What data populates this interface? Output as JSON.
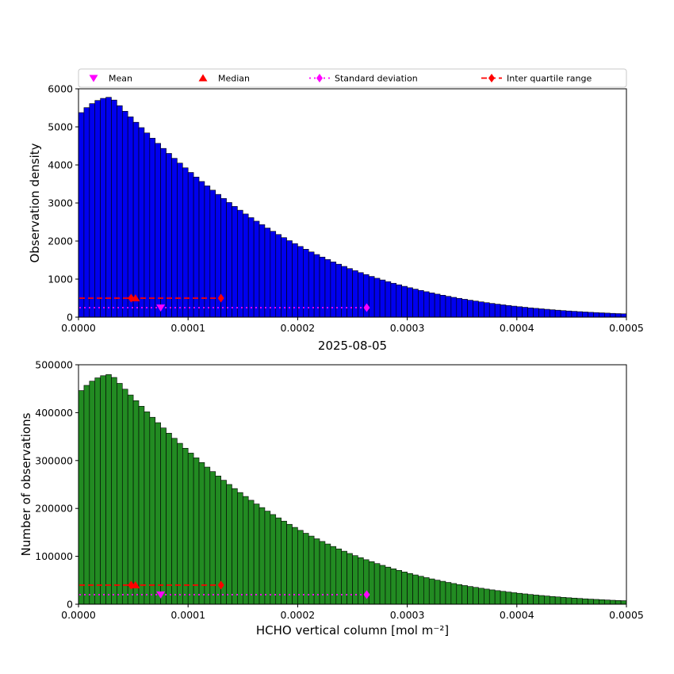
{
  "title": "2025-08-05",
  "xlabel": "HCHO vertical column [mol m⁻²]",
  "figure_background": "#ffffff",
  "marker_colors": {
    "mean": "#ff00ff",
    "median": "#ff0000",
    "std": "#ff00ff",
    "iqr": "#ff0000"
  },
  "legend": {
    "items": [
      {
        "label": "Mean",
        "marker": "triangle-down",
        "color": "#ff00ff",
        "line": null
      },
      {
        "label": "Median",
        "marker": "triangle-up",
        "color": "#ff0000",
        "line": null
      },
      {
        "label": "Standard deviation",
        "marker": "diamond",
        "color": "#ff00ff",
        "line": "dotted"
      },
      {
        "label": "Inter quartile range",
        "marker": "diamond",
        "color": "#ff0000",
        "line": "dashed"
      }
    ]
  },
  "chart_data": [
    {
      "type": "bar",
      "name": "observation-density-histogram",
      "ylabel": "Observation density",
      "bar_color": "#0000ee",
      "edge_color": "#000000",
      "bin_start": 0,
      "bin_width": 5e-06,
      "n_bins": 100,
      "xlim": [
        0,
        0.0005
      ],
      "ylim": [
        0,
        6000
      ],
      "xticks": [
        0,
        0.0001,
        0.0002,
        0.0003,
        0.0004,
        0.0005
      ],
      "xtick_labels": [
        "0.0000",
        "0.0001",
        "0.0002",
        "0.0003",
        "0.0004",
        "0.0005"
      ],
      "yticks": [
        0,
        1000,
        2000,
        3000,
        4000,
        5000,
        6000
      ],
      "ytick_labels": [
        "0",
        "1000",
        "2000",
        "3000",
        "4000",
        "5000",
        "6000"
      ],
      "values": [
        5375,
        5506,
        5612,
        5694,
        5749,
        5777,
        5705,
        5556,
        5410,
        5264,
        5121,
        4980,
        4840,
        4703,
        4567,
        4434,
        4303,
        4174,
        4048,
        3924,
        3802,
        3682,
        3565,
        3450,
        3337,
        3226,
        3119,
        3013,
        2910,
        2810,
        2711,
        2615,
        2522,
        2431,
        2342,
        2256,
        2172,
        2090,
        2010,
        1933,
        1858,
        1785,
        1714,
        1646,
        1579,
        1515,
        1453,
        1392,
        1334,
        1277,
        1223,
        1171,
        1120,
        1071,
        1023,
        978,
        934,
        891,
        851,
        811,
        774,
        737,
        703,
        669,
        637,
        606,
        577,
        548,
        521,
        495,
        470,
        446,
        424,
        402,
        381,
        361,
        342,
        324,
        307,
        290,
        275,
        260,
        245,
        232,
        219,
        207,
        195,
        184,
        173,
        163,
        154,
        145,
        136,
        128,
        121,
        114,
        107,
        100,
        94,
        89
      ],
      "markers": {
        "mean_x": 7.5e-05,
        "median_x": 5.2e-05,
        "q1_x": 4.8e-05,
        "q3_x": 0.00013,
        "std_end_x": 0.000263,
        "iqr_line_y": 500,
        "median_y": 500,
        "std_line_y": 250,
        "mean_y": 250
      }
    },
    {
      "type": "bar",
      "name": "number-of-observations-histogram",
      "ylabel": "Number of observations",
      "bar_color": "#228B22",
      "edge_color": "#000000",
      "bin_start": 0,
      "bin_width": 5e-06,
      "n_bins": 100,
      "xlim": [
        0,
        0.0005
      ],
      "ylim": [
        0,
        500000
      ],
      "xticks": [
        0,
        0.0001,
        0.0002,
        0.0003,
        0.0004,
        0.0005
      ],
      "xtick_labels": [
        "0.0000",
        "0.0001",
        "0.0002",
        "0.0003",
        "0.0004",
        "0.0005"
      ],
      "yticks": [
        0,
        100000,
        200000,
        300000,
        400000,
        500000
      ],
      "ytick_labels": [
        "0",
        "100000",
        "200000",
        "300000",
        "400000",
        "500000"
      ],
      "values": [
        446125,
        456998,
        465796,
        472602,
        477167,
        479491,
        473515,
        461148,
        449030,
        436912,
        425043,
        413340,
        401720,
        390349,
        379061,
        368022,
        357149,
        346442,
        335984,
        325692,
        315566,
        305606,
        295895,
        286350,
        276971,
        267758,
        258877,
        250079,
        241530,
        233230,
        225013,
        217045,
        209326,
        201773,
        194386,
        187248,
        180276,
        173470,
        166830,
        160439,
        154214,
        148155,
        142262,
        136618,
        131057,
        125745,
        120599,
        115536,
        110722,
        105991,
        101509,
        97193,
        92960,
        88893,
        84909,
        81174,
        77522,
        73953,
        70633,
        67313,
        64242,
        61171,
        58349,
        55527,
        52871,
        50298,
        47891,
        45484,
        43243,
        41085,
        39010,
        37018,
        35192,
        33366,
        31623,
        29963,
        28386,
        26892,
        25481,
        24070,
        22825,
        21580,
        20335,
        19256,
        18177,
        17181,
        16185,
        15272,
        14359,
        13529,
        12782,
        12035,
        11288,
        10624,
        10043,
        9462,
        8881,
        8300,
        7802,
        7387
      ],
      "markers": {
        "mean_x": 7.5e-05,
        "median_x": 5.2e-05,
        "q1_x": 4.8e-05,
        "q3_x": 0.00013,
        "std_end_x": 0.000263,
        "iqr_line_y": 40000,
        "median_y": 40000,
        "std_line_y": 20000,
        "mean_y": 20000
      }
    }
  ]
}
